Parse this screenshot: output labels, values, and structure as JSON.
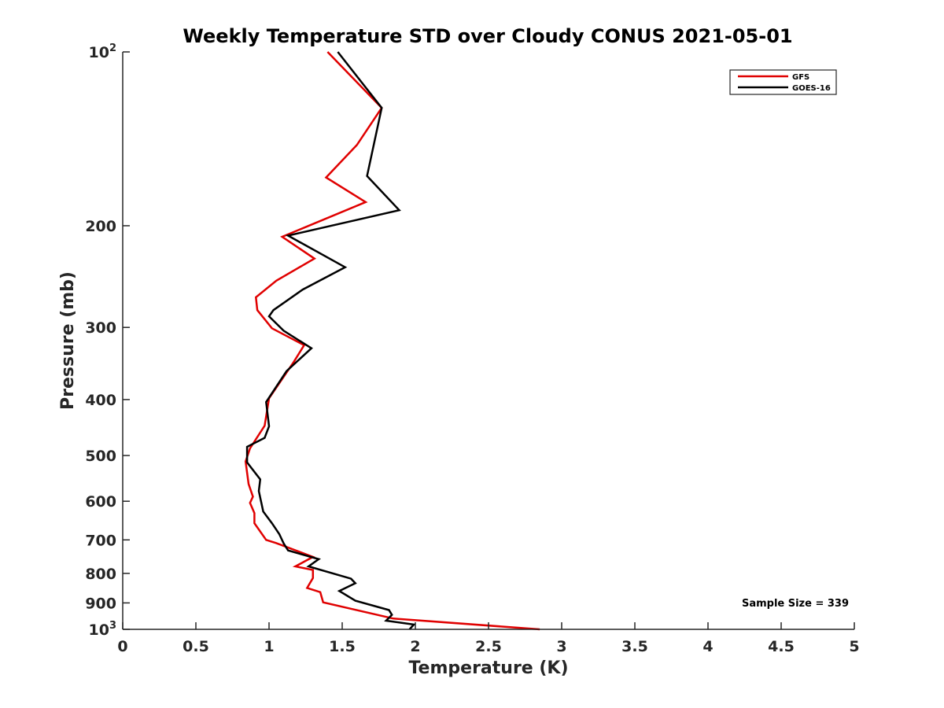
{
  "chart_data": {
    "type": "line",
    "title": "Weekly Temperature STD over Cloudy CONUS 2021-05-01",
    "xlabel": "Temperature (K)",
    "ylabel": "Pressure (mb)",
    "xlim": [
      0,
      5
    ],
    "ylim": [
      100,
      1000
    ],
    "y_scale": "log",
    "y_reversed": true,
    "grid": false,
    "legend_position": "top-right",
    "x_ticks": [
      {
        "value": 0,
        "label": "0"
      },
      {
        "value": 0.5,
        "label": "0.5"
      },
      {
        "value": 1,
        "label": "1"
      },
      {
        "value": 1.5,
        "label": "1.5"
      },
      {
        "value": 2,
        "label": "2"
      },
      {
        "value": 2.5,
        "label": "2.5"
      },
      {
        "value": 3,
        "label": "3"
      },
      {
        "value": 3.5,
        "label": "3.5"
      },
      {
        "value": 4,
        "label": "4"
      },
      {
        "value": 4.5,
        "label": "4.5"
      },
      {
        "value": 5,
        "label": "5"
      }
    ],
    "y_ticks": [
      {
        "value": 100,
        "base": "10",
        "exp": "2"
      },
      {
        "value": 200,
        "base": "200",
        "exp": ""
      },
      {
        "value": 300,
        "base": "300",
        "exp": ""
      },
      {
        "value": 400,
        "base": "400",
        "exp": ""
      },
      {
        "value": 500,
        "base": "500",
        "exp": ""
      },
      {
        "value": 600,
        "base": "600",
        "exp": ""
      },
      {
        "value": 700,
        "base": "700",
        "exp": ""
      },
      {
        "value": 800,
        "base": "800",
        "exp": ""
      },
      {
        "value": 900,
        "base": "900",
        "exp": ""
      },
      {
        "value": 1000,
        "base": "10",
        "exp": "3"
      }
    ],
    "series": [
      {
        "name": "GFS",
        "color": "#e00000",
        "points": [
          [
            1.4,
            100
          ],
          [
            1.77,
            125
          ],
          [
            1.6,
            145
          ],
          [
            1.39,
            165
          ],
          [
            1.66,
            182
          ],
          [
            1.09,
            209
          ],
          [
            1.31,
            228
          ],
          [
            1.05,
            249
          ],
          [
            0.91,
            266
          ],
          [
            0.92,
            280
          ],
          [
            1.02,
            301
          ],
          [
            1.24,
            322
          ],
          [
            1.17,
            344
          ],
          [
            1.0,
            398
          ],
          [
            0.97,
            444
          ],
          [
            0.87,
            486
          ],
          [
            0.84,
            512
          ],
          [
            0.86,
            560
          ],
          [
            0.89,
            589
          ],
          [
            0.87,
            604
          ],
          [
            0.9,
            629
          ],
          [
            0.9,
            655
          ],
          [
            0.98,
            700
          ],
          [
            1.05,
            709
          ],
          [
            1.3,
            749
          ],
          [
            1.18,
            778
          ],
          [
            1.3,
            789
          ],
          [
            1.3,
            815
          ],
          [
            1.26,
            848
          ],
          [
            1.35,
            862
          ],
          [
            1.37,
            898
          ],
          [
            1.85,
            958
          ],
          [
            2.85,
            1000
          ]
        ]
      },
      {
        "name": "GOES-16",
        "color": "#000000",
        "points": [
          [
            1.47,
            100
          ],
          [
            1.77,
            125
          ],
          [
            1.67,
            164
          ],
          [
            1.89,
            188
          ],
          [
            1.13,
            208
          ],
          [
            1.52,
            236
          ],
          [
            1.23,
            258
          ],
          [
            1.03,
            280
          ],
          [
            1.0,
            287
          ],
          [
            1.1,
            304
          ],
          [
            1.29,
            326
          ],
          [
            1.12,
            357
          ],
          [
            0.98,
            404
          ],
          [
            1.0,
            445
          ],
          [
            0.97,
            466
          ],
          [
            0.85,
            483
          ],
          [
            0.85,
            514
          ],
          [
            0.94,
            550
          ],
          [
            0.93,
            576
          ],
          [
            0.96,
            625
          ],
          [
            1.02,
            655
          ],
          [
            1.07,
            684
          ],
          [
            1.1,
            710
          ],
          [
            1.13,
            730
          ],
          [
            1.34,
            756
          ],
          [
            1.27,
            778
          ],
          [
            1.56,
            817
          ],
          [
            1.59,
            832
          ],
          [
            1.48,
            858
          ],
          [
            1.59,
            892
          ],
          [
            1.82,
            926
          ],
          [
            1.84,
            944
          ],
          [
            1.8,
            966
          ],
          [
            1.99,
            981
          ],
          [
            1.96,
            1000
          ]
        ]
      }
    ],
    "annotation": "Sample Size = 339"
  }
}
